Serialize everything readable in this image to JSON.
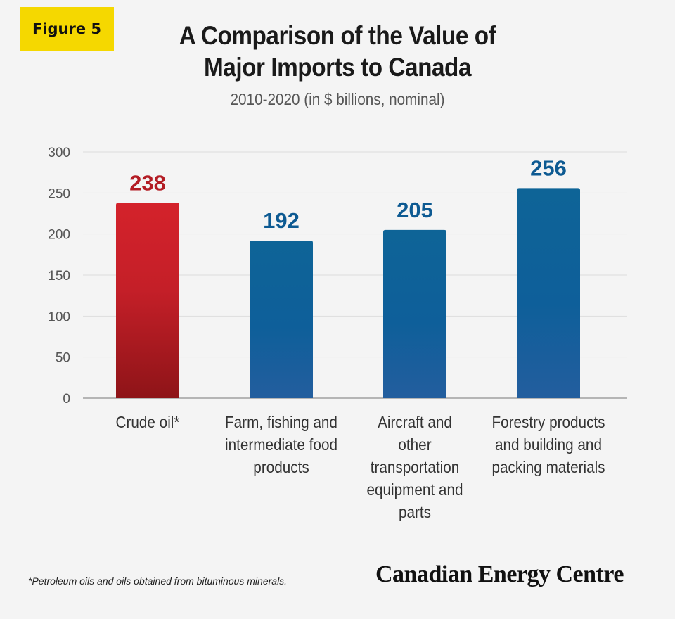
{
  "badge": "Figure 5",
  "chart_data": {
    "type": "bar",
    "title": "A Comparison of the Value of Major Imports to Canada",
    "subtitle": "2010-2020 (in $ billions, nominal)",
    "categories": [
      "Crude oil*",
      "Farm, fishing and intermediate food products",
      "Aircraft and other transportation equipment and parts",
      "Forestry products and building and packing materials"
    ],
    "values": [
      238,
      192,
      205,
      256
    ],
    "value_labels": [
      "238",
      "192",
      "205",
      "256"
    ],
    "ylim": [
      0,
      300
    ],
    "yticks": [
      0,
      50,
      100,
      150,
      200,
      250,
      300
    ],
    "ytick_labels": [
      "0",
      "50",
      "100",
      "150",
      "200",
      "250",
      "300"
    ],
    "xlabel": "",
    "ylabel": "",
    "grid": true,
    "bar_colors": [
      "#c8202a",
      "#0f5f96",
      "#0f5f96",
      "#0f5f96"
    ],
    "label_colors": [
      "#b31c24",
      "#0d5a92",
      "#0d5a92",
      "#0d5a92"
    ]
  },
  "labels": {
    "title_line1": "A Comparison of the Value of",
    "title_line2": "Major Imports to Canada",
    "subtitle": "2010-2020 (in $ billions, nominal)",
    "cat0": [
      "Crude oil*"
    ],
    "cat1": [
      "Farm, fishing and",
      "intermediate food",
      "products"
    ],
    "cat2": [
      "Aircraft and",
      "other",
      "transportation",
      "equipment and",
      "parts"
    ],
    "cat3": [
      "Forestry products",
      "and building and",
      "packing materials"
    ]
  },
  "footnote": "*Petroleum oils and oils obtained from bituminous minerals.",
  "brand": "Canadian Energy Centre"
}
